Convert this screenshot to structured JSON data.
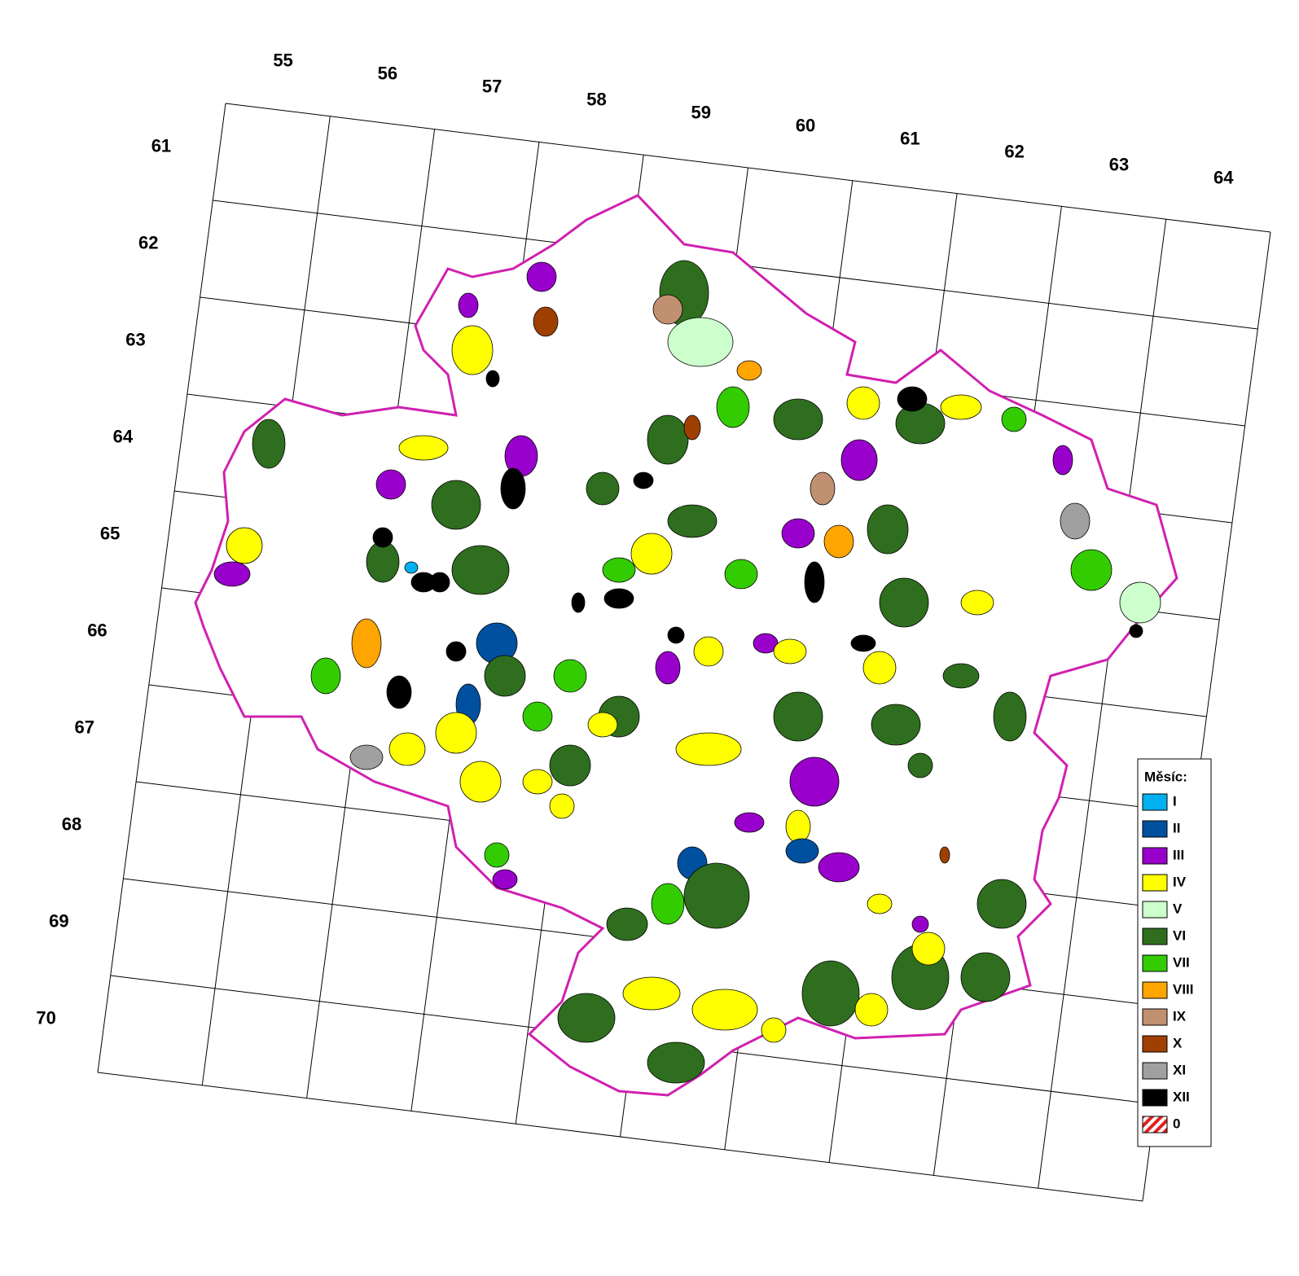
{
  "grid": {
    "columns": [
      55,
      56,
      57,
      58,
      59,
      60,
      61,
      62,
      63,
      64
    ],
    "rows": [
      61,
      62,
      63,
      64,
      65,
      66,
      67,
      68,
      69,
      70
    ]
  },
  "legend": {
    "title": "Měsíc:",
    "items": [
      {
        "label": "I",
        "color": "#00b0f0"
      },
      {
        "label": "II",
        "color": "#0050a0"
      },
      {
        "label": "III",
        "color": "#9900cc"
      },
      {
        "label": "IV",
        "color": "#ffff00"
      },
      {
        "label": "V",
        "color": "#ccffcc"
      },
      {
        "label": "VI",
        "color": "#2e6e1e"
      },
      {
        "label": "VII",
        "color": "#33cc00"
      },
      {
        "label": "VIII",
        "color": "#ffa500"
      },
      {
        "label": "IX",
        "color": "#c09070"
      },
      {
        "label": "X",
        "color": "#a04000"
      },
      {
        "label": "XI",
        "color": "#a0a0a0"
      },
      {
        "label": "XII",
        "color": "#000000"
      },
      {
        "label": "0",
        "color": "#e02020",
        "hatched": true
      }
    ]
  }
}
